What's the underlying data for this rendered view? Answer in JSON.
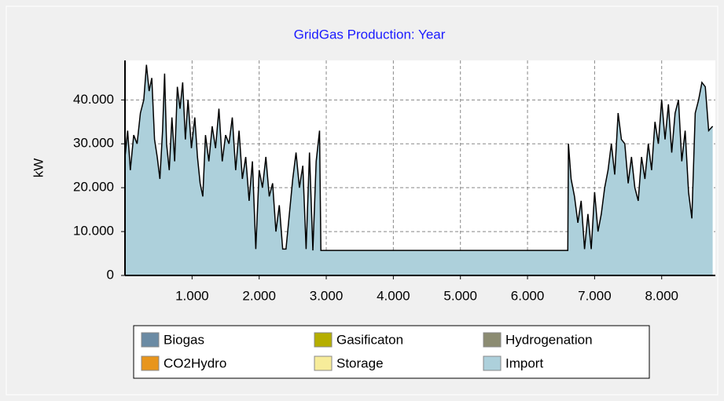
{
  "chart_data": {
    "type": "area",
    "title": "GridGas Production: Year",
    "y_label": "kW",
    "x": [
      0,
      40,
      80,
      130,
      180,
      230,
      280,
      320,
      360,
      400,
      440,
      480,
      520,
      560,
      590,
      620,
      660,
      700,
      740,
      780,
      820,
      860,
      900,
      940,
      990,
      1040,
      1080,
      1120,
      1160,
      1200,
      1250,
      1300,
      1350,
      1400,
      1450,
      1500,
      1550,
      1600,
      1650,
      1700,
      1750,
      1800,
      1850,
      1900,
      1950,
      2000,
      2050,
      2100,
      2150,
      2200,
      2250,
      2300,
      2350,
      2400,
      2450,
      2500,
      2550,
      2600,
      2650,
      2700,
      2750,
      2800,
      2850,
      2900,
      2920,
      6600,
      6610,
      6650,
      6700,
      6750,
      6800,
      6850,
      6900,
      6950,
      7000,
      7050,
      7100,
      7150,
      7200,
      7250,
      7300,
      7350,
      7400,
      7450,
      7500,
      7550,
      7600,
      7650,
      7700,
      7750,
      7800,
      7850,
      7900,
      7950,
      8000,
      8050,
      8100,
      8150,
      8200,
      8250,
      8300,
      8350,
      8400,
      8450,
      8500,
      8550,
      8600,
      8650,
      8700,
      8760
    ],
    "series": [
      {
        "name": "Biogas",
        "color": "#6b8ba4"
      },
      {
        "name": "CO2Hydro",
        "color": "#e8951c"
      },
      {
        "name": "Gasificaton",
        "color": "#b5ae00"
      },
      {
        "name": "Storage",
        "color": "#f7ec9a"
      },
      {
        "name": "Hydrogenation",
        "color": "#8c8c72"
      },
      {
        "name": "Import",
        "color": "#add0db",
        "values": [
          27000,
          33000,
          24000,
          32000,
          30000,
          37000,
          40000,
          48000,
          42000,
          45000,
          31000,
          27000,
          22000,
          33000,
          46000,
          30000,
          24000,
          36000,
          26000,
          43000,
          38000,
          44000,
          31000,
          40000,
          29000,
          36000,
          27000,
          21000,
          18000,
          32000,
          26000,
          34000,
          29000,
          38000,
          26000,
          32000,
          30000,
          36000,
          24000,
          33000,
          22000,
          27000,
          17000,
          26000,
          6000,
          24000,
          20000,
          27000,
          18000,
          21000,
          10000,
          16000,
          6000,
          6000,
          14000,
          22000,
          28000,
          20000,
          25000,
          6000,
          28000,
          5700,
          26000,
          33000,
          5700,
          5700,
          30000,
          22000,
          18000,
          12000,
          17000,
          6000,
          14000,
          6000,
          19000,
          10000,
          14000,
          20000,
          24000,
          30000,
          23000,
          37000,
          31000,
          30000,
          21000,
          27000,
          20000,
          17000,
          27000,
          22000,
          30000,
          24000,
          35000,
          30000,
          40000,
          31000,
          39000,
          28000,
          37000,
          40000,
          26000,
          33000,
          19000,
          13000,
          37000,
          40000,
          44000,
          43000,
          33000,
          34000
        ]
      }
    ],
    "xlim": [
      0,
      8800
    ],
    "ylim": [
      0,
      49000
    ],
    "xticks": [
      {
        "value": 1000,
        "label": "1.000"
      },
      {
        "value": 2000,
        "label": "2.000"
      },
      {
        "value": 3000,
        "label": "3.000"
      },
      {
        "value": 4000,
        "label": "4.000"
      },
      {
        "value": 5000,
        "label": "5.000"
      },
      {
        "value": 6000,
        "label": "6.000"
      },
      {
        "value": 7000,
        "label": "7.000"
      },
      {
        "value": 8000,
        "label": "8.000"
      }
    ],
    "yticks": [
      0,
      {
        "value": 10000,
        "label": "10.000"
      },
      {
        "value": 20000,
        "label": "20.000"
      },
      {
        "value": 30000,
        "label": "30.000"
      },
      {
        "value": 40000,
        "label": "40.000"
      }
    ],
    "grid": true,
    "line_color": "#000000",
    "legend": "bottom"
  }
}
